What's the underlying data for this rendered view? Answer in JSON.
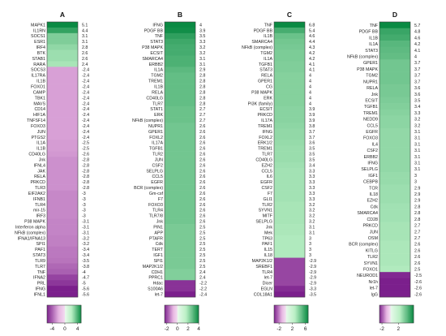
{
  "colors": {
    "neg_max": "#7b1f8c",
    "neg_mid": "#e7b6e2",
    "zero": "#ffffff",
    "pos_mid": "#b9efc4",
    "pos_max": "#0a8a43",
    "box_border": "#444444"
  },
  "chart_data": [
    {
      "type": "heatmap",
      "title": "A",
      "genes": [
        "MAPK1",
        "IL1RN",
        "SOCS1",
        "ESR1",
        "IRF4",
        "BTK",
        "STAB1",
        "RARA",
        "SOCS3",
        "IL17RA",
        "IL1B",
        "FOXO1",
        "CAMP",
        "TBK1",
        "MAVS",
        "CD14",
        "HIF1A",
        "TNFSF14",
        "FOXO3",
        "JUN",
        "PTGS2",
        "IL1A",
        "IL1B",
        "CD40LG",
        "Jnk",
        "IFNL4",
        "JAK",
        "RELA",
        "PRKCD",
        "TLR3",
        "EIF2AK2",
        "IFNB1",
        "TLR4",
        "mir-15",
        "IRF3",
        "P38 MAPK",
        "Interferon alpha",
        "NFkB (complex)",
        "IFNA1/IFNA13",
        "SPI1",
        "PAF1",
        "STAT3",
        "TLR9",
        "TLR7",
        "TNF",
        "IFNA2",
        "PRL",
        "IFNG",
        "IFNL1"
      ],
      "values": [
        5.1,
        4.4,
        3.1,
        3.1,
        2.8,
        2.6,
        2.6,
        2.4,
        -2.4,
        -2.4,
        -2.4,
        -2.4,
        -2.4,
        -2.4,
        -2.4,
        -2.4,
        -2.4,
        -2.4,
        -2.4,
        -2.4,
        -2.4,
        -2.5,
        -2.5,
        -2.6,
        -2.8,
        -2.8,
        -2.8,
        -2.8,
        -2.8,
        -2.8,
        -3,
        -3,
        -3,
        -3,
        -3,
        -3.1,
        -3.1,
        -3.1,
        -3.2,
        -3.2,
        -3.4,
        -3.4,
        -3.5,
        -3.8,
        -4,
        -4.7,
        -5,
        -5.6,
        -5.6
      ],
      "colorbar": {
        "ticks": [
          "-4",
          "0",
          "4"
        ],
        "range": [
          -5.6,
          5.1
        ]
      }
    },
    {
      "type": "heatmap",
      "title": "B",
      "genes": [
        "IFNG",
        "PDGF BB",
        "TNF",
        "STAT3",
        "P38 MAPK",
        "ECSIT",
        "SMARCA4",
        "ERBB2",
        "IL1A",
        "TGM2",
        "TREM1",
        "IL1B",
        "RELA",
        "CD40LG",
        "TLR7",
        "STAT1",
        "ERK",
        "NFkB (complex)",
        "NUPR1",
        "GPER1",
        "FOXL2",
        "IL17A",
        "TGFB1",
        "TLR2",
        "JUN",
        "CSF2",
        "SELPLG",
        "CCL5",
        "EGFR",
        "BCR (complex)",
        "Gm-csf",
        "F7",
        "FOXO3",
        "TLR4",
        "TLR7/8",
        "Jnk",
        "PIN1",
        "APP",
        "PTAFR",
        "Cdk",
        "TERT",
        "IGF1",
        "SPI1",
        "MAP2K1/2",
        "CDH1",
        "PPRC1",
        "Hdac",
        "S100A6",
        "let-7"
      ],
      "values": [
        4,
        3.9,
        3.5,
        3.3,
        3.2,
        3.2,
        3.1,
        3.1,
        2.9,
        2.8,
        2.8,
        2.8,
        2.8,
        2.8,
        2.8,
        2.7,
        2.7,
        2.7,
        2.6,
        2.6,
        2.6,
        2.6,
        2.6,
        2.6,
        2.6,
        2.6,
        2.6,
        2.6,
        2.6,
        2.6,
        2.6,
        2.6,
        2.6,
        2.6,
        2.6,
        2.6,
        2.5,
        2.5,
        2.5,
        2.5,
        2.5,
        2.5,
        2.5,
        2.5,
        2.4,
        2.4,
        -2.2,
        -2.2,
        -2.4
      ],
      "colorbar": {
        "ticks": [
          "-2",
          "0",
          "2",
          "4"
        ],
        "range": [
          -2.4,
          4
        ]
      }
    },
    {
      "type": "heatmap",
      "title": "C",
      "genes": [
        "TNF",
        "PDGF BB",
        "IL1B",
        "SMARCA4",
        "NFkB (complex)",
        "TGM2",
        "IL1A",
        "TGFB1",
        "STAT3",
        "RELA",
        "GPER1",
        "CG",
        "P38 MAPK",
        "ERK",
        "PI3K (family)",
        "ECSIT",
        "PRKCD",
        "IL17A",
        "TREM1",
        "IFNG",
        "FOXL2",
        "ERK1/2",
        "TREM1",
        "TLR7",
        "CD40LG",
        "EZH2",
        "CCL5",
        "IL6",
        "EGFR",
        "CSF2",
        "F7",
        "GLI1",
        "TLR2",
        "SYVN1",
        "MITF",
        "SELPLG",
        "Jnk",
        "Mek",
        "TP63",
        "PAF1",
        "IL15",
        "IL18",
        "MAP2K1/2",
        "SREBF1",
        "TLR4",
        "let-7",
        "Dicer",
        "EGLN",
        "COL18A1"
      ],
      "values": [
        6.8,
        5.4,
        4.6,
        4.4,
        4.3,
        4.2,
        4.2,
        4.1,
        4.1,
        4,
        4,
        4,
        4,
        4,
        4,
        3.9,
        3.9,
        3.9,
        3.8,
        3.7,
        3.7,
        3.6,
        3.5,
        3.5,
        3.5,
        3.4,
        3.3,
        3.3,
        3.3,
        3.3,
        3.3,
        3.3,
        3.2,
        3.2,
        3.2,
        3.2,
        3.1,
        3.1,
        3,
        3,
        3,
        3,
        -2.9,
        -2.9,
        -2.9,
        -2.9,
        -2.9,
        -3.3,
        -3.5
      ],
      "colorbar": {
        "ticks": [
          "-2",
          "2",
          "6"
        ],
        "range": [
          -3.5,
          6.8
        ]
      }
    },
    {
      "type": "heatmap",
      "title": "D",
      "genes": [
        "TNF",
        "PDGF BB",
        "IL1B",
        "IL1A",
        "STAT3",
        "NFkB (complex)",
        "GPER1",
        "P38 MAPK",
        "TGM2",
        "NUPR1",
        "RELA",
        "Jnk",
        "ECSIT",
        "TGFB1",
        "TREM1",
        "NEDD9",
        "CCL5",
        "EGFR",
        "FOXO3",
        "IL4",
        "CSF2",
        "ERBB2",
        "IFNG",
        "SELPLG",
        "IGF1",
        "CEBPB",
        "TCR",
        "IL18",
        "EZH2",
        "Cdk",
        "SMARCA4",
        "CD28",
        "PRKCD",
        "JUN",
        "OSM",
        "BCR (complex)",
        "KITLG",
        "TLR2",
        "SYVN1",
        "FOXO1",
        "NEUROD1",
        "Nr1h",
        "let-7",
        "IgG"
      ],
      "values": [
        5.7,
        4.8,
        4.6,
        4.2,
        4.1,
        4,
        3.7,
        3.7,
        3.7,
        3.7,
        3.6,
        3.6,
        3.5,
        3.4,
        3.3,
        3.2,
        3.2,
        3.1,
        3.1,
        3.1,
        3.1,
        3.1,
        3.1,
        3.1,
        3,
        3,
        2.9,
        2.9,
        2.9,
        2.8,
        2.8,
        2.8,
        2.7,
        2.7,
        2.7,
        2.6,
        2.6,
        2.6,
        2.6,
        2.5,
        -2.5,
        -2.6,
        -2.6,
        -2.6
      ],
      "colorbar": {
        "ticks": [
          "-2",
          "2"
        ],
        "range": [
          -2.6,
          5.7
        ]
      }
    }
  ]
}
